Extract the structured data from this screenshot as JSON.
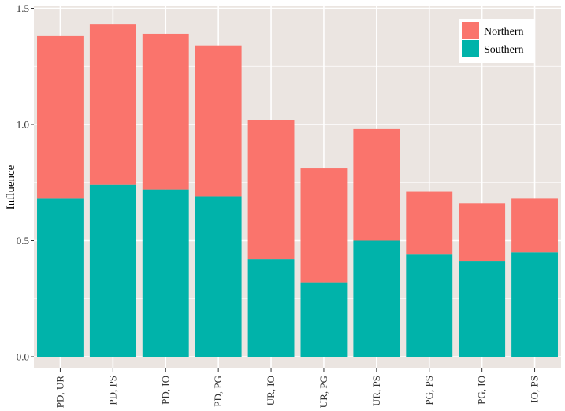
{
  "chart_data": {
    "type": "bar",
    "stacked": true,
    "title": "",
    "xlabel": "",
    "ylabel": "Influence",
    "ylim": [
      0,
      1.5
    ],
    "yticks": [
      {
        "value": 0.0,
        "label": "0.0"
      },
      {
        "value": 0.5,
        "label": "0.5"
      },
      {
        "value": 1.0,
        "label": "1.0"
      },
      {
        "value": 1.5,
        "label": "1.5"
      }
    ],
    "categories": [
      "PD, UR",
      "PD, PS",
      "PD, IO",
      "PD, PG",
      "UR, IO",
      "UR, PG",
      "UR, PS",
      "PG, PS",
      "PG, IO",
      "IO, PS"
    ],
    "series": [
      {
        "name": "Southern",
        "color": "#00B3AA",
        "values": [
          0.68,
          0.74,
          0.72,
          0.69,
          0.42,
          0.32,
          0.5,
          0.44,
          0.41,
          0.45
        ]
      },
      {
        "name": "Northern",
        "color": "#FA746C",
        "values": [
          0.7,
          0.69,
          0.67,
          0.65,
          0.6,
          0.49,
          0.48,
          0.27,
          0.25,
          0.23
        ]
      }
    ],
    "legend": {
      "position": "top-right",
      "entries": [
        {
          "label": "Northern",
          "color": "#FA746C"
        },
        {
          "label": "Southern",
          "color": "#00B3AA"
        }
      ]
    },
    "grid": true,
    "panel_background": "#EBE5E1",
    "grid_color": "#FFFFFF"
  }
}
